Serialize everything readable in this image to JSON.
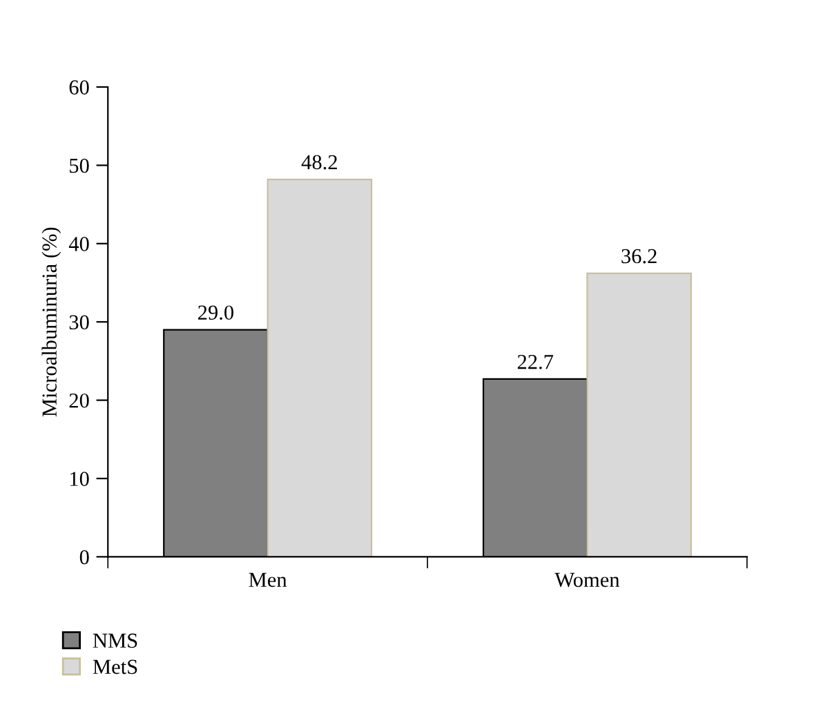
{
  "chart_data": {
    "type": "bar",
    "ylabel": "Microalbuminuria (%)",
    "categories": [
      "Men",
      "Women"
    ],
    "series": [
      {
        "name": "NMS",
        "color": "#808080",
        "values": [
          29.0,
          22.7
        ],
        "value_labels": [
          "29.0",
          "22.7"
        ]
      },
      {
        "name": "MetS",
        "color": "#d9d9d9",
        "values": [
          48.2,
          36.2
        ],
        "value_labels": [
          "48.2",
          "36.2"
        ]
      }
    ],
    "ylim": [
      0,
      60
    ],
    "yticks": [
      0,
      10,
      20,
      30,
      40,
      50,
      60
    ],
    "grid": false,
    "legend": "bottom left"
  }
}
